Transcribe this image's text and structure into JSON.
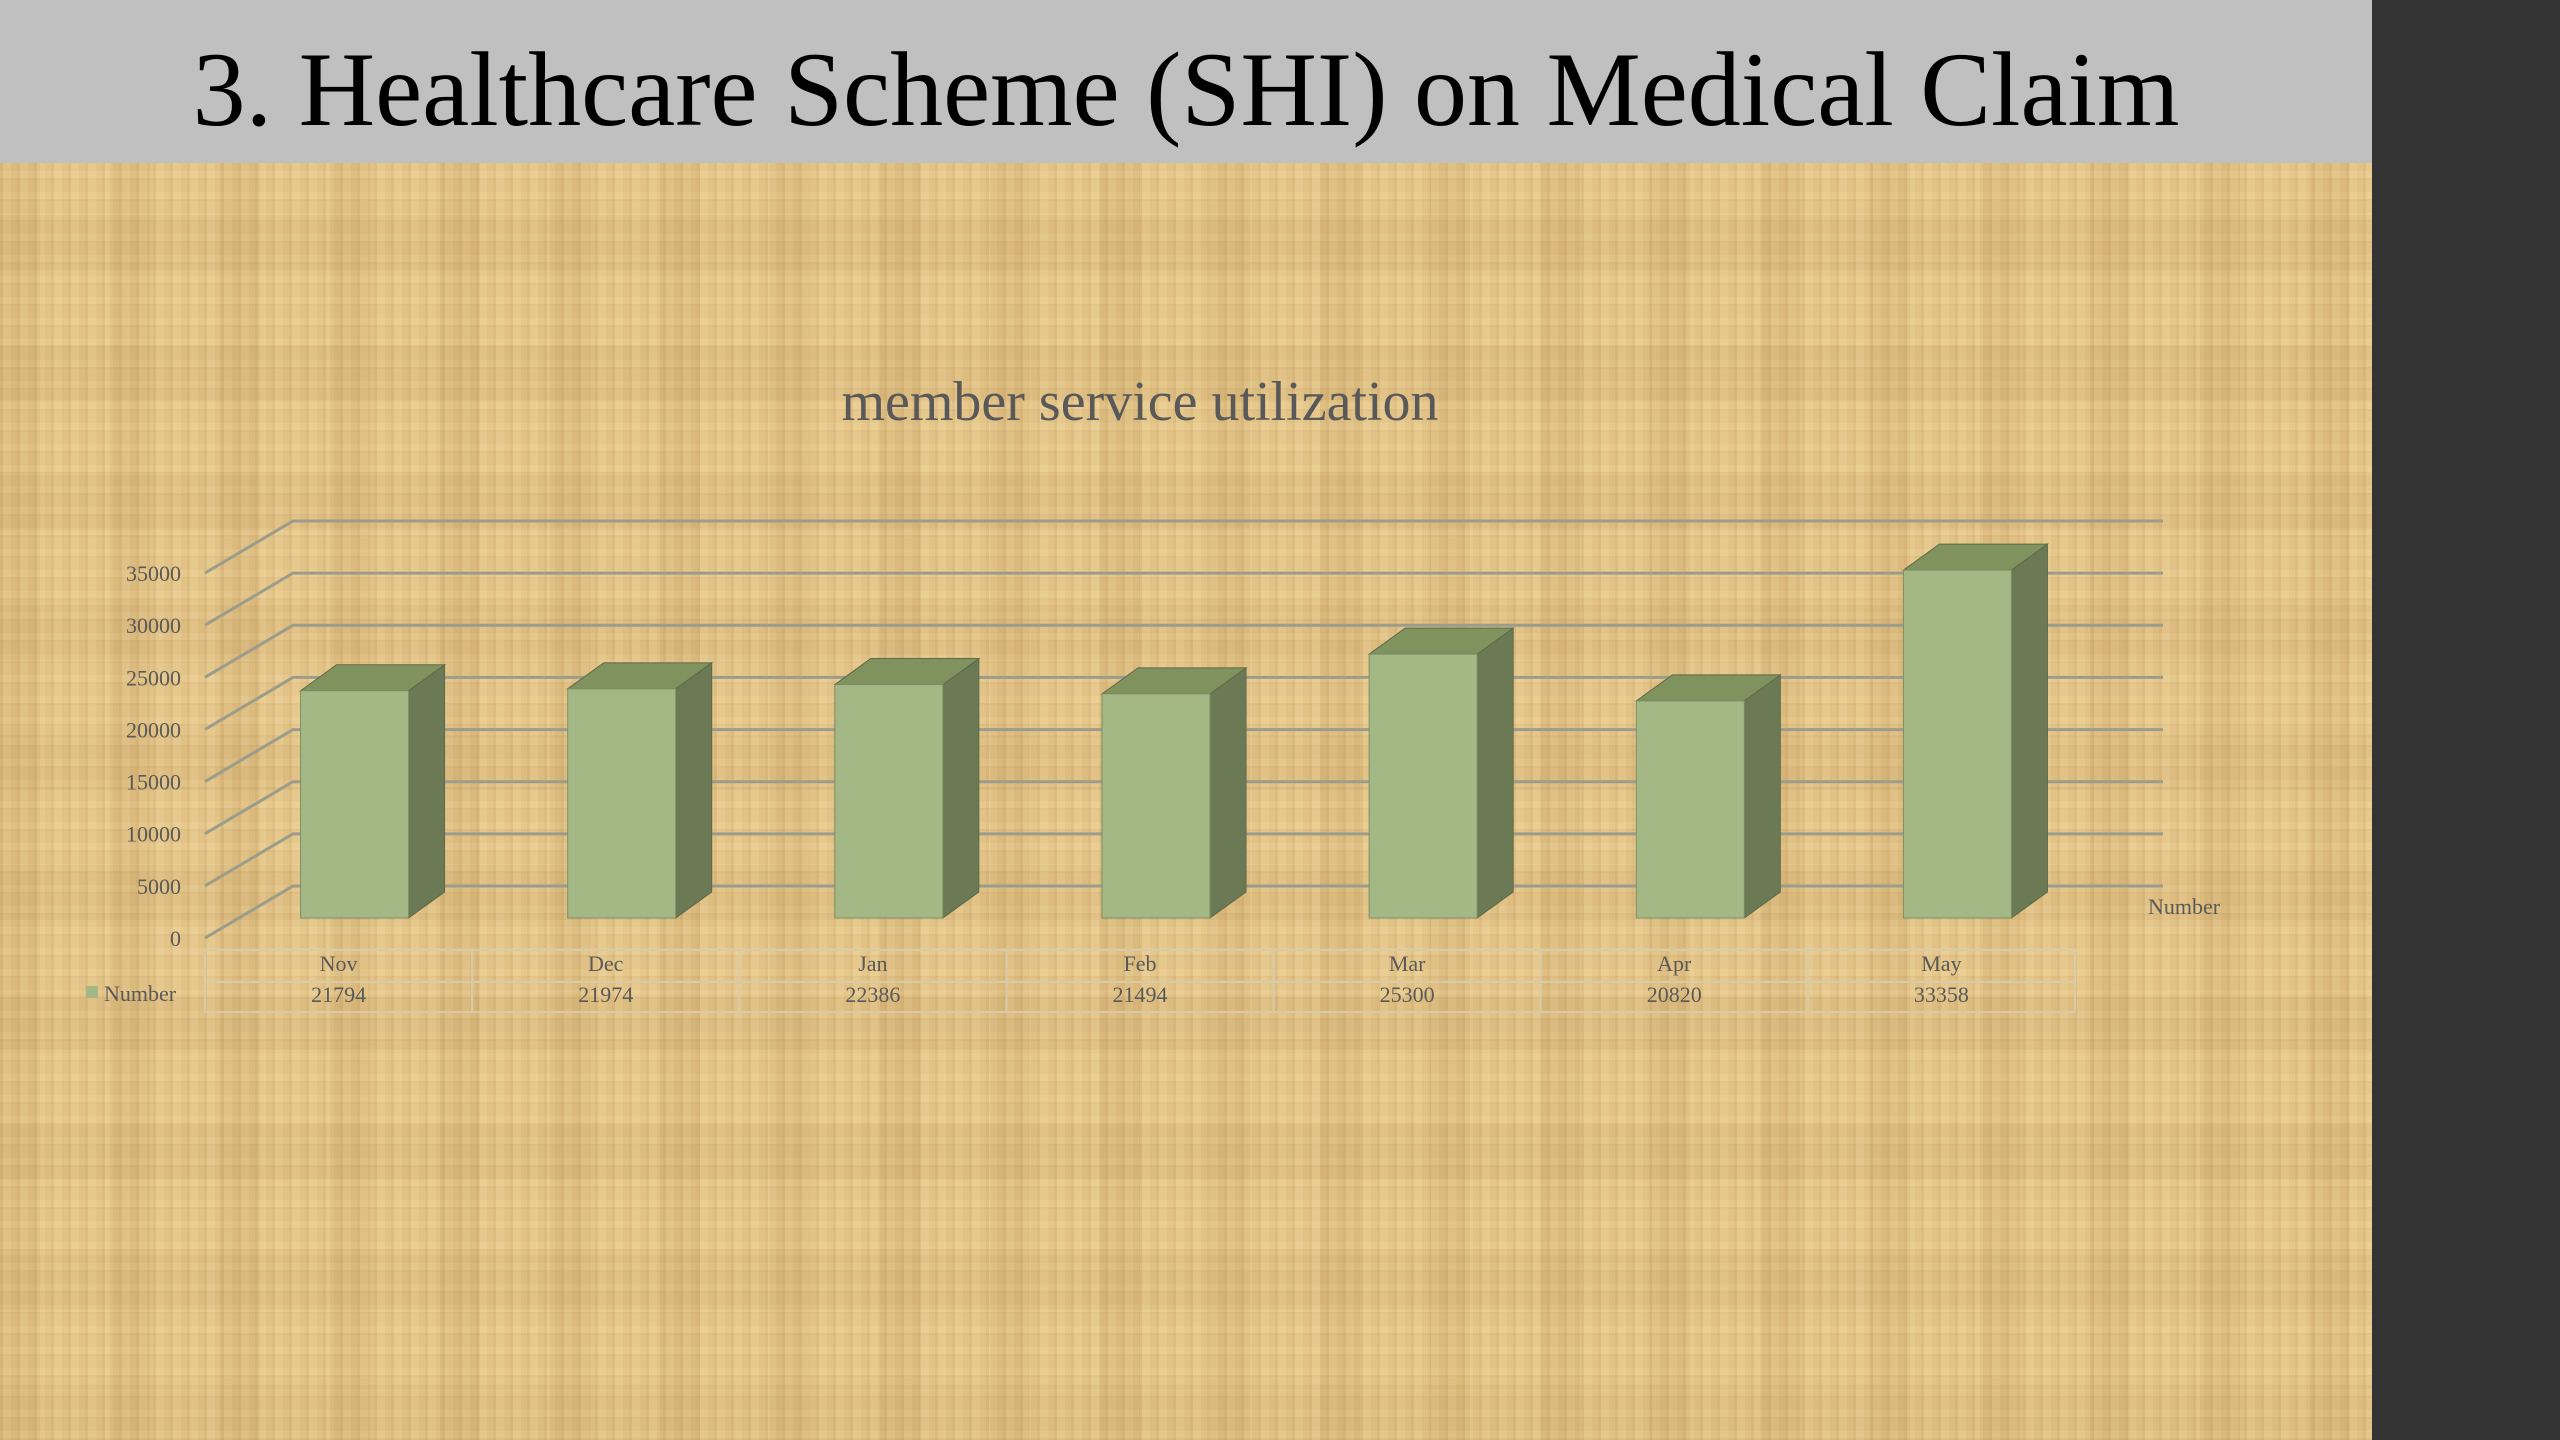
{
  "slide": {
    "title": "3. Healthcare Scheme (SHI) on Medical Claim"
  },
  "colors": {
    "title_band": "#c0c0c0",
    "background": "#e6c688",
    "right_strip": "#333333",
    "bar_front": "#a4b886",
    "bar_side": "#6b7a55",
    "bar_top": "#80935f",
    "gridline": "#9c9c8c",
    "text": "#595959"
  },
  "chart_data": {
    "type": "bar",
    "style": "3d-column",
    "title": "member service utilization",
    "categories": [
      "Nov",
      "Dec",
      "Jan",
      "Feb",
      "Mar",
      "Apr",
      "May"
    ],
    "series": [
      {
        "name": "Number",
        "values": [
          21794,
          21974,
          22386,
          21494,
          25300,
          20820,
          33358
        ]
      }
    ],
    "ylim": [
      0,
      35000
    ],
    "yticks": [
      "0",
      "5000",
      "10000",
      "15000",
      "20000",
      "25000",
      "30000",
      "35000"
    ],
    "data_table": {
      "show": true,
      "legend_label": "Number",
      "values": [
        "21794",
        "21974",
        "22386",
        "21494",
        "25300",
        "20820",
        "33358"
      ]
    },
    "depth_axis_label": "Number",
    "grid": true
  }
}
